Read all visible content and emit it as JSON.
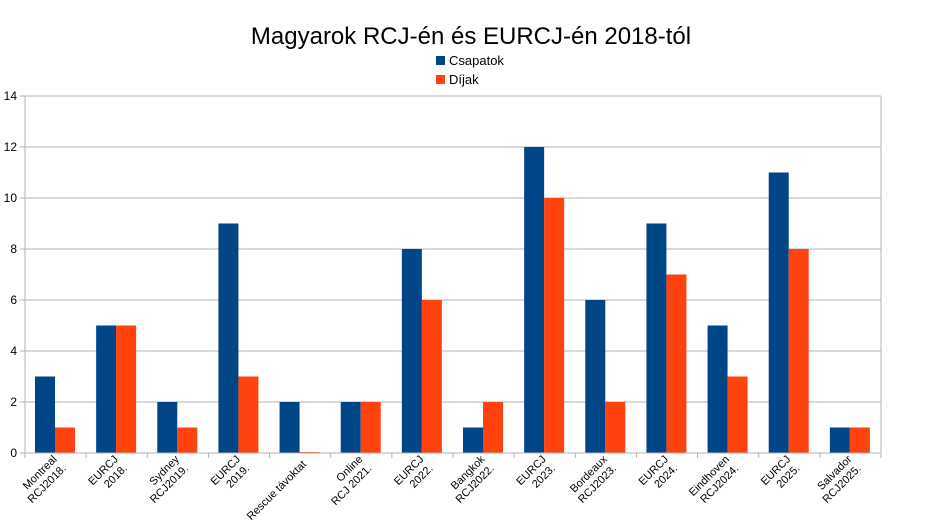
{
  "chart_data": {
    "type": "bar",
    "title": "Magyarok RCJ-én és EURCJ-én 2018-tól",
    "categories": [
      [
        "Montreal",
        "RCJ2018."
      ],
      [
        "EURCJ",
        "2018."
      ],
      [
        "Sydney",
        "RCJ2019."
      ],
      [
        "EURCJ",
        "2019."
      ],
      [
        "Rescue távoktat"
      ],
      [
        "Online",
        "RCJ 2021."
      ],
      [
        "EURCJ",
        "2022."
      ],
      [
        "Bangkok",
        "RCJ2022."
      ],
      [
        "EURCJ",
        "2023."
      ],
      [
        "Bordeaux",
        "RCJ2023."
      ],
      [
        "EURCJ",
        "2024."
      ],
      [
        "Eindhoven",
        "RCJ2024."
      ],
      [
        "EURCJ",
        "2025."
      ],
      [
        "Salvador",
        "RCJ2025."
      ]
    ],
    "series": [
      {
        "name": "Csapatok",
        "color": "#004586",
        "values": [
          3,
          5,
          2,
          9,
          2,
          2,
          8,
          1,
          12,
          6,
          9,
          5,
          11,
          1
        ]
      },
      {
        "name": "Díjak",
        "color": "#ff420e",
        "values": [
          1,
          5,
          1,
          3,
          0,
          2,
          6,
          2,
          10,
          2,
          7,
          3,
          8,
          1
        ]
      }
    ],
    "ylim": [
      0,
      14
    ],
    "yticks": [
      0,
      2,
      4,
      6,
      8,
      10,
      12,
      14
    ],
    "grid": true,
    "legend_position": "top-center",
    "xlabel": "",
    "ylabel": ""
  }
}
